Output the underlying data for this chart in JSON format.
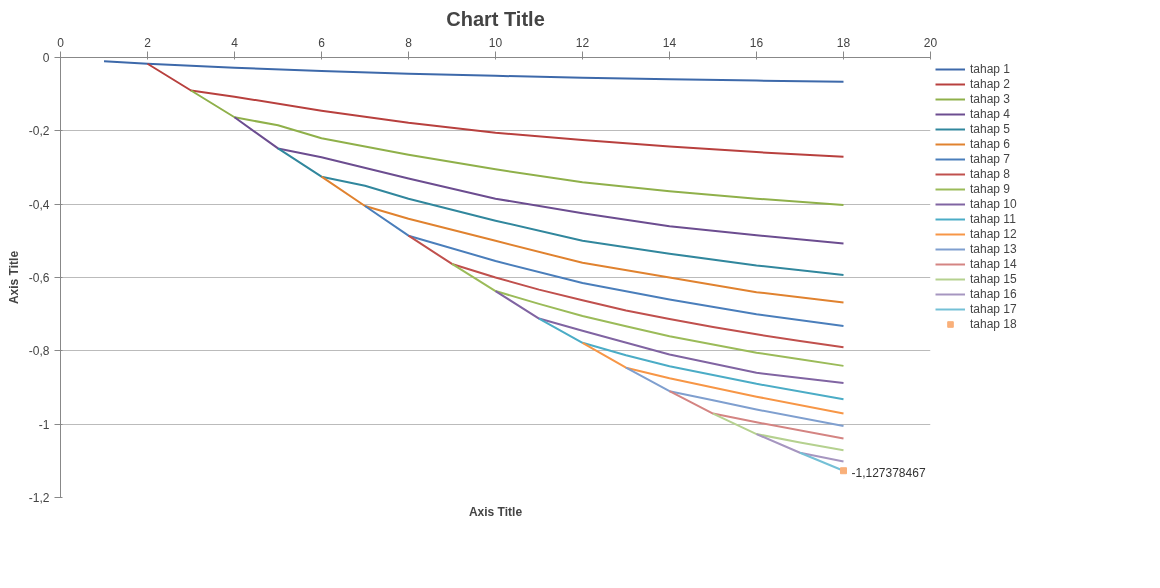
{
  "chart_data": {
    "type": "line",
    "title": "Chart Title",
    "xlabel": "Axis Title",
    "ylabel": "Axis Title",
    "xlim": [
      0,
      20
    ],
    "xticks": [
      0,
      2,
      4,
      6,
      8,
      10,
      12,
      14,
      16,
      18,
      20
    ],
    "ylim": [
      -1.2,
      0
    ],
    "yticks": [
      {
        "value": -1.2,
        "label": "-1,2"
      },
      {
        "value": -1,
        "label": "-1"
      },
      {
        "value": -0.8,
        "label": "-0,8"
      },
      {
        "value": -0.6,
        "label": "-0,6"
      },
      {
        "value": -0.4,
        "label": "-0,4"
      },
      {
        "value": -0.2,
        "label": "-0,2"
      },
      0
    ],
    "grid": "y",
    "legend": "right",
    "marker": "none",
    "line_style": "solid",
    "annotations": [
      {
        "text": "-1,127378467",
        "x": 18,
        "y": -1.127378467
      }
    ],
    "series": [
      {
        "name": "tahap 1",
        "color": "#3d69aa",
        "x": [
          1,
          2,
          4,
          6,
          8,
          10,
          12,
          14,
          16,
          18
        ],
        "values": [
          -0.01,
          -0.017,
          -0.028,
          -0.037,
          -0.044,
          -0.05,
          -0.055,
          -0.059,
          -0.063,
          -0.066
        ]
      },
      {
        "name": "tahap 2",
        "color": "#b8403e",
        "x": [
          2,
          3,
          4,
          6,
          8,
          10,
          12,
          14,
          16,
          18
        ],
        "values": [
          -0.017,
          -0.09,
          -0.107,
          -0.145,
          -0.178,
          -0.205,
          -0.225,
          -0.243,
          -0.258,
          -0.271
        ]
      },
      {
        "name": "tahap 3",
        "color": "#8fb04a",
        "x": [
          3,
          4,
          5,
          6,
          8,
          10,
          12,
          14,
          16,
          18
        ],
        "values": [
          -0.09,
          -0.163,
          -0.185,
          -0.22,
          -0.265,
          -0.305,
          -0.34,
          -0.365,
          -0.385,
          -0.402
        ]
      },
      {
        "name": "tahap 4",
        "color": "#6c4d90",
        "x": [
          4,
          5,
          6,
          8,
          10,
          12,
          14,
          16,
          18
        ],
        "values": [
          -0.163,
          -0.248,
          -0.272,
          -0.33,
          -0.385,
          -0.425,
          -0.46,
          -0.485,
          -0.507
        ]
      },
      {
        "name": "tahap 5",
        "color": "#31879d",
        "x": [
          5,
          6,
          7,
          8,
          10,
          12,
          14,
          16,
          18
        ],
        "values": [
          -0.248,
          -0.325,
          -0.35,
          -0.385,
          -0.445,
          -0.5,
          -0.535,
          -0.567,
          -0.593
        ]
      },
      {
        "name": "tahap 6",
        "color": "#e0822f",
        "x": [
          6,
          7,
          8,
          10,
          12,
          14,
          16,
          18
        ],
        "values": [
          -0.325,
          -0.405,
          -0.44,
          -0.5,
          -0.56,
          -0.6,
          -0.64,
          -0.668
        ]
      },
      {
        "name": "tahap 7",
        "color": "#4a7ebb",
        "x": [
          7,
          8,
          10,
          12,
          14,
          16,
          18
        ],
        "values": [
          -0.405,
          -0.486,
          -0.555,
          -0.615,
          -0.66,
          -0.7,
          -0.732
        ]
      },
      {
        "name": "tahap 8",
        "color": "#c0504d",
        "x": [
          8,
          9,
          10,
          11,
          12,
          13,
          14,
          15,
          16,
          17,
          18
        ],
        "values": [
          -0.486,
          -0.563,
          -0.6,
          -0.633,
          -0.662,
          -0.69,
          -0.713,
          -0.735,
          -0.755,
          -0.773,
          -0.79
        ]
      },
      {
        "name": "tahap 9",
        "color": "#9bbb59",
        "x": [
          9,
          10,
          11,
          12,
          13,
          14,
          15,
          16,
          17,
          18
        ],
        "values": [
          -0.563,
          -0.637,
          -0.672,
          -0.705,
          -0.733,
          -0.76,
          -0.783,
          -0.805,
          -0.823,
          -0.841
        ]
      },
      {
        "name": "tahap 10",
        "color": "#8064a2",
        "x": [
          10,
          11,
          12,
          14,
          16,
          18
        ],
        "values": [
          -0.637,
          -0.712,
          -0.745,
          -0.81,
          -0.86,
          -0.888
        ]
      },
      {
        "name": "tahap 11",
        "color": "#4bacc6",
        "x": [
          11,
          12,
          13,
          14,
          16,
          18
        ],
        "values": [
          -0.712,
          -0.778,
          -0.812,
          -0.842,
          -0.89,
          -0.932
        ]
      },
      {
        "name": "tahap 12",
        "color": "#f79646",
        "x": [
          12,
          13,
          14,
          16,
          18
        ],
        "values": [
          -0.778,
          -0.846,
          -0.875,
          -0.925,
          -0.971
        ]
      },
      {
        "name": "tahap 13",
        "color": "#7f9fcf",
        "x": [
          13,
          14,
          15,
          16,
          18
        ],
        "values": [
          -0.846,
          -0.91,
          -0.935,
          -0.96,
          -1.005
        ]
      },
      {
        "name": "tahap 14",
        "color": "#d48482",
        "x": [
          14,
          15,
          16,
          18
        ],
        "values": [
          -0.91,
          -0.971,
          -0.995,
          -1.039
        ]
      },
      {
        "name": "tahap 15",
        "color": "#b5d18f",
        "x": [
          15,
          16,
          17,
          18
        ],
        "values": [
          -0.971,
          -1.027,
          -1.05,
          -1.071
        ]
      },
      {
        "name": "tahap 16",
        "color": "#a696c0",
        "x": [
          16,
          17,
          18
        ],
        "values": [
          -1.027,
          -1.078,
          -1.102
        ]
      },
      {
        "name": "tahap 17",
        "color": "#74c0d6",
        "x": [
          17,
          18
        ],
        "values": [
          -1.078,
          -1.127
        ]
      },
      {
        "name": "tahap 18",
        "color": "#f9b07a",
        "type": "scatter",
        "marker": "square",
        "x": [
          18
        ],
        "values": [
          -1.127
        ]
      }
    ]
  }
}
